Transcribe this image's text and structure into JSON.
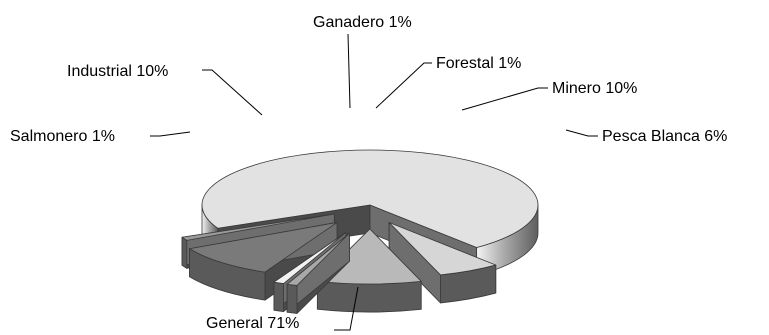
{
  "chart_data": {
    "type": "pie",
    "style": "3d-exploded",
    "title": "",
    "slices": [
      {
        "label": "General 71%",
        "category": "General",
        "value": 71,
        "color": "#e2e2e2"
      },
      {
        "label": "Pesca Blanca 6%",
        "category": "Pesca Blanca",
        "value": 6,
        "color": "#d6d6d6"
      },
      {
        "label": "Minero 10%",
        "category": "Minero",
        "value": 10,
        "color": "#b9b9b9"
      },
      {
        "label": "Forestal 1%",
        "category": "Forestal",
        "value": 1,
        "color": "#a8a8a8"
      },
      {
        "label": "Ganadero 1%",
        "category": "Ganadero",
        "value": 1,
        "color": "#f2f2f2"
      },
      {
        "label": "Industrial 10%",
        "category": "Industrial",
        "value": 10,
        "color": "#7a7a7a"
      },
      {
        "label": "Salmonero 1%",
        "category": "Salmonero",
        "value": 1,
        "color": "#9a9a9a"
      }
    ],
    "legend": "none"
  }
}
